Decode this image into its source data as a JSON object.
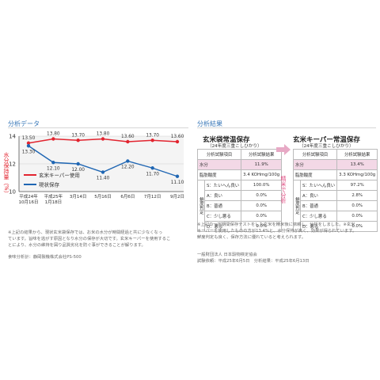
{
  "left_section": {
    "label": "分析データ"
  },
  "right_section": {
    "label": "分析結果"
  },
  "chart_data": {
    "type": "line",
    "ylabel": "水分保持量（%）",
    "ylim": [
      10,
      14
    ],
    "yticks": [
      10,
      12,
      14
    ],
    "categories": [
      "平成24年\n10月16日",
      "平成25年\n1月18日",
      "3月14日",
      "5月16日",
      "6月6日",
      "7月12日",
      "9月2日"
    ],
    "series": [
      {
        "name": "玄米キーパー使用",
        "color": "#e2242f",
        "values": [
          13.5,
          13.8,
          13.7,
          13.8,
          13.6,
          13.7,
          13.6
        ],
        "labels": [
          "13.50",
          "13.80",
          "13.70",
          "13.80",
          "13.60",
          "13.70",
          "13.60"
        ]
      },
      {
        "name": "現状保存",
        "color": "#1f66b3",
        "values": [
          13.3,
          12.1,
          12.0,
          11.4,
          12.2,
          11.7,
          11.1
        ],
        "labels": [
          "13.30",
          "12.10",
          "12.00",
          "11.40",
          "12.20",
          "11.70",
          "11.10"
        ]
      }
    ],
    "grid": true,
    "legend": "middle-left"
  },
  "left_notes": [
    "※上記の結果から、現状玄米袋保存では、お米の水分が時間経過と共に少なくなっ",
    "ています。旨味を逃がす原因となり水分の保存が大切です。玄米キーパーを使用するこ",
    "とにより、水分の維持を図り品質劣化を防ぐ事ができることが解ります。"
  ],
  "instrument": "食味分析計：静岡製機株式会社PS-500",
  "table_left": {
    "title": "玄米袋常温保存",
    "subtitle": "（24年度三重こしひかり）",
    "header": [
      "分析試験項目",
      "分析試験結果"
    ],
    "moisture": [
      "水分",
      "11.9%"
    ],
    "fat": [
      "脂肪酸度",
      "3.4 KOHmg/100g"
    ],
    "eval_label": "鮮度判定",
    "eval_rows": [
      [
        "S：たいへん良い",
        "100.0%"
      ],
      [
        "A：良い",
        "0.0%"
      ],
      [
        "B：普通",
        "0.0%"
      ],
      [
        "C：少し悪る",
        "0.0%"
      ],
      [
        "D：悪る",
        "0.0%"
      ]
    ]
  },
  "table_right": {
    "title": "玄米キーパー常温保存",
    "subtitle": "（24年度三重こしひかり）",
    "header": [
      "分析試験項目",
      "分析試験結果"
    ],
    "moisture": [
      "水分",
      "13.4%"
    ],
    "fat": [
      "脂肪酸度",
      "3.3 KOHmg/100g"
    ],
    "eval_label": "鮮度判定",
    "eval_rows": [
      [
        "S：たいへん良い",
        "97.2%"
      ],
      [
        "A：良い",
        "2.8%"
      ],
      [
        "B：普通",
        "0.0%"
      ],
      [
        "C：少し悪る",
        "0.0%"
      ],
      [
        "D：悪る",
        "0.0%"
      ]
    ]
  },
  "arrow_label": "精米で分析",
  "right_notes": [
    "※上記の一定期間保存テストをした玄米を精米後に依頼し、分析をしました。※玄米",
    "キーパーを使用したものの方が13.4%と、水分保持が高く、効果が得られています。",
    "鮮度判定も良く、保存方法に優れていると考えられます。"
  ],
  "testing_body": "一般財団法人 日本穀物検定協会",
  "test_dates": "試験依頼：平成25年6月5日　分析結果：平成25年6月13日",
  "icons": {
    "marker": "circle-marker-icon",
    "arrow": "right-arrow-icon"
  }
}
